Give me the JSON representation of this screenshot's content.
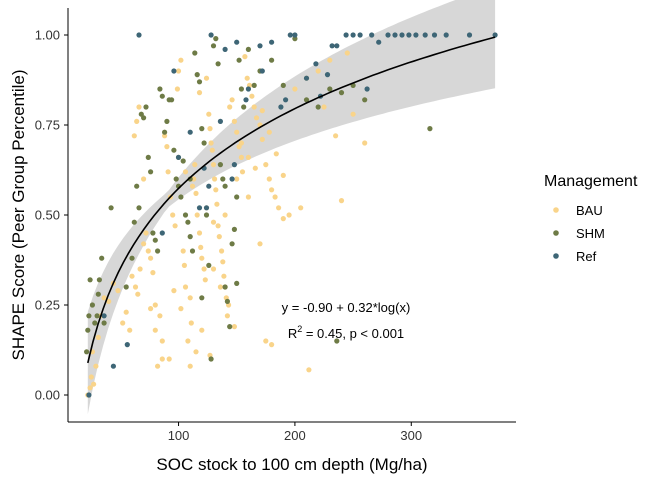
{
  "chart_data": {
    "type": "scatter",
    "xlabel": "SOC stock to 100 cm depth (Mg/ha)",
    "ylabel": "SHAPE Score (Peer Group Percentile)",
    "xlim": [
      5,
      390
    ],
    "ylim": [
      -0.075,
      1.075
    ],
    "x_ticks": [
      100,
      200,
      300
    ],
    "y_ticks": [
      0.0,
      0.25,
      0.5,
      0.75,
      1.0
    ],
    "y_tick_labels": [
      "0.00",
      "0.25",
      "0.50",
      "0.75",
      "1.00"
    ],
    "legend": {
      "title": "Management",
      "position": "right",
      "entries": [
        "BAU",
        "SHM",
        "Ref"
      ]
    },
    "annotations": {
      "equation": "y = -0.90 + 0.32*log(x)",
      "r2_prefix": "R",
      "r2_sup": "2",
      "r2_rest": " = 0.45, p < 0.001"
    },
    "fit": {
      "intercept": -0.9,
      "slope": 0.32,
      "x_range": [
        22,
        372
      ],
      "ci_band": true
    },
    "colors": {
      "BAU": "#F9D48A",
      "SHM": "#6E7B46",
      "Ref": "#3E6676",
      "fit": "#000000",
      "band": "#D3D3D3"
    },
    "series": [
      {
        "name": "BAU",
        "points": [
          [
            22,
            0.0
          ],
          [
            24,
            0.02
          ],
          [
            25,
            0.05
          ],
          [
            27,
            0.03
          ],
          [
            29,
            0.08
          ],
          [
            26,
            0.12
          ],
          [
            31,
            0.16
          ],
          [
            33,
            0.22
          ],
          [
            36,
            0.27
          ],
          [
            40,
            0.26
          ],
          [
            44,
            0.31
          ],
          [
            48,
            0.29
          ],
          [
            52,
            0.2
          ],
          [
            55,
            0.23
          ],
          [
            58,
            0.18
          ],
          [
            60,
            0.33
          ],
          [
            63,
            0.3
          ],
          [
            65,
            0.28
          ],
          [
            67,
            0.35
          ],
          [
            70,
            0.42
          ],
          [
            72,
            0.45
          ],
          [
            74,
            0.4
          ],
          [
            76,
            0.38
          ],
          [
            78,
            0.34
          ],
          [
            80,
            0.25
          ],
          [
            82,
            0.08
          ],
          [
            84,
            0.22
          ],
          [
            86,
            0.1
          ],
          [
            88,
            0.72
          ],
          [
            90,
            0.69
          ],
          [
            91,
            0.62
          ],
          [
            93,
            0.55
          ],
          [
            95,
            0.5
          ],
          [
            97,
            0.47
          ],
          [
            99,
            0.85
          ],
          [
            100,
            0.9
          ],
          [
            102,
            0.93
          ],
          [
            104,
            0.4
          ],
          [
            105,
            0.36
          ],
          [
            106,
            0.3
          ],
          [
            108,
            0.15
          ],
          [
            110,
            0.27
          ],
          [
            111,
            0.2
          ],
          [
            113,
            0.6
          ],
          [
            114,
            0.64
          ],
          [
            115,
            0.56
          ],
          [
            116,
            0.5
          ],
          [
            118,
            0.45
          ],
          [
            119,
            0.41
          ],
          [
            120,
            0.38
          ],
          [
            122,
            0.35
          ],
          [
            123,
            0.32
          ],
          [
            124,
            0.88
          ],
          [
            126,
            0.78
          ],
          [
            127,
            0.74
          ],
          [
            128,
            0.7
          ],
          [
            129,
            0.68
          ],
          [
            130,
            0.64
          ],
          [
            131,
            0.6
          ],
          [
            132,
            0.57
          ],
          [
            133,
            0.53
          ],
          [
            134,
            0.47
          ],
          [
            135,
            0.44
          ],
          [
            137,
            0.4
          ],
          [
            138,
            0.37
          ],
          [
            139,
            0.33
          ],
          [
            140,
            0.3
          ],
          [
            141,
            0.27
          ],
          [
            143,
            0.25
          ],
          [
            144,
            0.8
          ],
          [
            146,
            0.82
          ],
          [
            148,
            0.76
          ],
          [
            150,
            0.73
          ],
          [
            152,
            0.69
          ],
          [
            154,
            0.66
          ],
          [
            155,
            0.62
          ],
          [
            157,
            0.94
          ],
          [
            159,
            0.88
          ],
          [
            161,
            0.86
          ],
          [
            163,
            0.83
          ],
          [
            165,
            0.8
          ],
          [
            167,
            0.77
          ],
          [
            170,
            0.75
          ],
          [
            172,
            0.71
          ],
          [
            175,
            0.64
          ],
          [
            178,
            0.6
          ],
          [
            180,
            0.57
          ],
          [
            183,
            0.55
          ],
          [
            186,
            0.52
          ],
          [
            190,
            0.49
          ],
          [
            175,
            0.15
          ],
          [
            180,
            0.14
          ],
          [
            110,
            0.08
          ],
          [
            127,
            0.11
          ],
          [
            212,
            0.07
          ],
          [
            240,
            0.54
          ],
          [
            260,
            0.7
          ],
          [
            235,
            0.72
          ],
          [
            225,
            0.8
          ],
          [
            250,
            0.78
          ],
          [
            200,
            0.85
          ],
          [
            210,
            0.88
          ],
          [
            220,
            0.9
          ],
          [
            230,
            0.93
          ],
          [
            245,
            0.95
          ],
          [
            195,
            0.5
          ],
          [
            205,
            0.52
          ],
          [
            170,
            0.42
          ],
          [
            160,
            0.55
          ],
          [
            150,
            0.6
          ],
          [
            140,
            0.5
          ],
          [
            130,
            0.35
          ],
          [
            120,
            0.18
          ],
          [
            115,
            0.12
          ],
          [
            102,
            0.24
          ],
          [
            96,
            0.29
          ],
          [
            92,
            0.1
          ],
          [
            86,
            0.15
          ],
          [
            80,
            0.18
          ],
          [
            76,
            0.24
          ],
          [
            70,
            0.6
          ],
          [
            66,
            0.8
          ],
          [
            64,
            0.76
          ],
          [
            62,
            0.72
          ],
          [
            100,
            0.66
          ],
          [
            106,
            0.62
          ],
          [
            112,
            0.58
          ],
          [
            118,
            0.84
          ],
          [
            124,
            0.52
          ],
          [
            130,
            0.48
          ],
          [
            136,
            0.3
          ],
          [
            142,
            0.22
          ],
          [
            148,
            0.19
          ],
          [
            154,
            0.7
          ],
          [
            160,
            0.66
          ],
          [
            166,
            0.63
          ],
          [
            172,
            0.79
          ],
          [
            178,
            0.73
          ],
          [
            184,
            0.67
          ],
          [
            190,
            0.61
          ]
        ]
      },
      {
        "name": "SHM",
        "points": [
          [
            21,
            0.12
          ],
          [
            22,
            0.18
          ],
          [
            23,
            0.22
          ],
          [
            24,
            0.32
          ],
          [
            26,
            0.25
          ],
          [
            28,
            0.2
          ],
          [
            30,
            0.22
          ],
          [
            31,
            0.28
          ],
          [
            32,
            0.32
          ],
          [
            34,
            0.38
          ],
          [
            36,
            0.2
          ],
          [
            42,
            0.52
          ],
          [
            55,
            0.3
          ],
          [
            60,
            0.38
          ],
          [
            62,
            0.48
          ],
          [
            64,
            0.58
          ],
          [
            66,
            0.52
          ],
          [
            68,
            0.78
          ],
          [
            70,
            0.77
          ],
          [
            72,
            0.8
          ],
          [
            74,
            0.66
          ],
          [
            76,
            0.62
          ],
          [
            78,
            0.45
          ],
          [
            80,
            0.43
          ],
          [
            82,
            0.4
          ],
          [
            84,
            0.85
          ],
          [
            86,
            0.83
          ],
          [
            88,
            0.73
          ],
          [
            90,
            0.76
          ],
          [
            92,
            0.82
          ],
          [
            94,
            0.82
          ],
          [
            96,
            0.68
          ],
          [
            98,
            0.6
          ],
          [
            100,
            0.58
          ],
          [
            102,
            0.55
          ],
          [
            104,
            0.65
          ],
          [
            106,
            0.5
          ],
          [
            108,
            0.48
          ],
          [
            110,
            0.44
          ],
          [
            112,
            0.4
          ],
          [
            114,
            0.95
          ],
          [
            116,
            0.89
          ],
          [
            118,
            0.87
          ],
          [
            120,
            0.74
          ],
          [
            122,
            0.7
          ],
          [
            124,
            0.5
          ],
          [
            126,
            0.36
          ],
          [
            128,
            0.1
          ],
          [
            130,
            0.97
          ],
          [
            132,
            0.99
          ],
          [
            134,
            0.92
          ],
          [
            136,
            0.64
          ],
          [
            138,
            0.6
          ],
          [
            140,
            0.3
          ],
          [
            142,
            0.26
          ],
          [
            144,
            0.19
          ],
          [
            146,
            0.42
          ],
          [
            148,
            0.46
          ],
          [
            150,
            0.55
          ],
          [
            152,
            0.93
          ],
          [
            154,
            0.85
          ],
          [
            156,
            0.8
          ],
          [
            160,
            0.96
          ],
          [
            165,
            0.86
          ],
          [
            170,
            0.9
          ],
          [
            180,
            0.93
          ],
          [
            190,
            0.86
          ],
          [
            200,
            0.99
          ],
          [
            210,
            0.82
          ],
          [
            220,
            0.8
          ],
          [
            230,
            0.85
          ],
          [
            240,
            0.84
          ],
          [
            250,
            0.86
          ],
          [
            260,
            0.82
          ],
          [
            316,
            0.74
          ],
          [
            236,
            0.15
          ],
          [
            150,
            0.31
          ],
          [
            140,
            0.58
          ],
          [
            120,
            0.27
          ],
          [
            110,
            0.6
          ]
        ]
      },
      {
        "name": "Ref",
        "points": [
          [
            23,
            0.0
          ],
          [
            36,
            0.22
          ],
          [
            44,
            0.08
          ],
          [
            56,
            0.14
          ],
          [
            66,
            1.0
          ],
          [
            86,
            0.45
          ],
          [
            96,
            0.9
          ],
          [
            100,
            0.66
          ],
          [
            110,
            0.73
          ],
          [
            118,
            0.52
          ],
          [
            122,
            0.63
          ],
          [
            126,
            0.58
          ],
          [
            128,
            1.0
          ],
          [
            136,
            0.76
          ],
          [
            140,
            0.96
          ],
          [
            146,
            0.6
          ],
          [
            148,
            0.64
          ],
          [
            150,
            0.98
          ],
          [
            160,
            0.85
          ],
          [
            172,
            0.9
          ],
          [
            180,
            0.98
          ],
          [
            188,
            0.8
          ],
          [
            192,
            0.82
          ],
          [
            196,
            1.0
          ],
          [
            200,
            1.0
          ],
          [
            210,
            0.88
          ],
          [
            218,
            0.92
          ],
          [
            222,
            0.83
          ],
          [
            228,
            0.89
          ],
          [
            236,
            0.97
          ],
          [
            244,
            1.0
          ],
          [
            250,
            1.0
          ],
          [
            256,
            1.0
          ],
          [
            262,
            0.85
          ],
          [
            266,
            1.0
          ],
          [
            272,
            0.98
          ],
          [
            280,
            1.0
          ],
          [
            286,
            1.0
          ],
          [
            292,
            1.0
          ],
          [
            298,
            1.0
          ],
          [
            304,
            1.0
          ],
          [
            312,
            1.0
          ],
          [
            320,
            1.0
          ],
          [
            330,
            1.0
          ],
          [
            350,
            1.0
          ],
          [
            372,
            1.0
          ],
          [
            124,
            0.52
          ],
          [
            232,
            0.97
          ],
          [
            158,
            0.82
          ],
          [
            170,
            0.97
          ]
        ]
      }
    ]
  }
}
